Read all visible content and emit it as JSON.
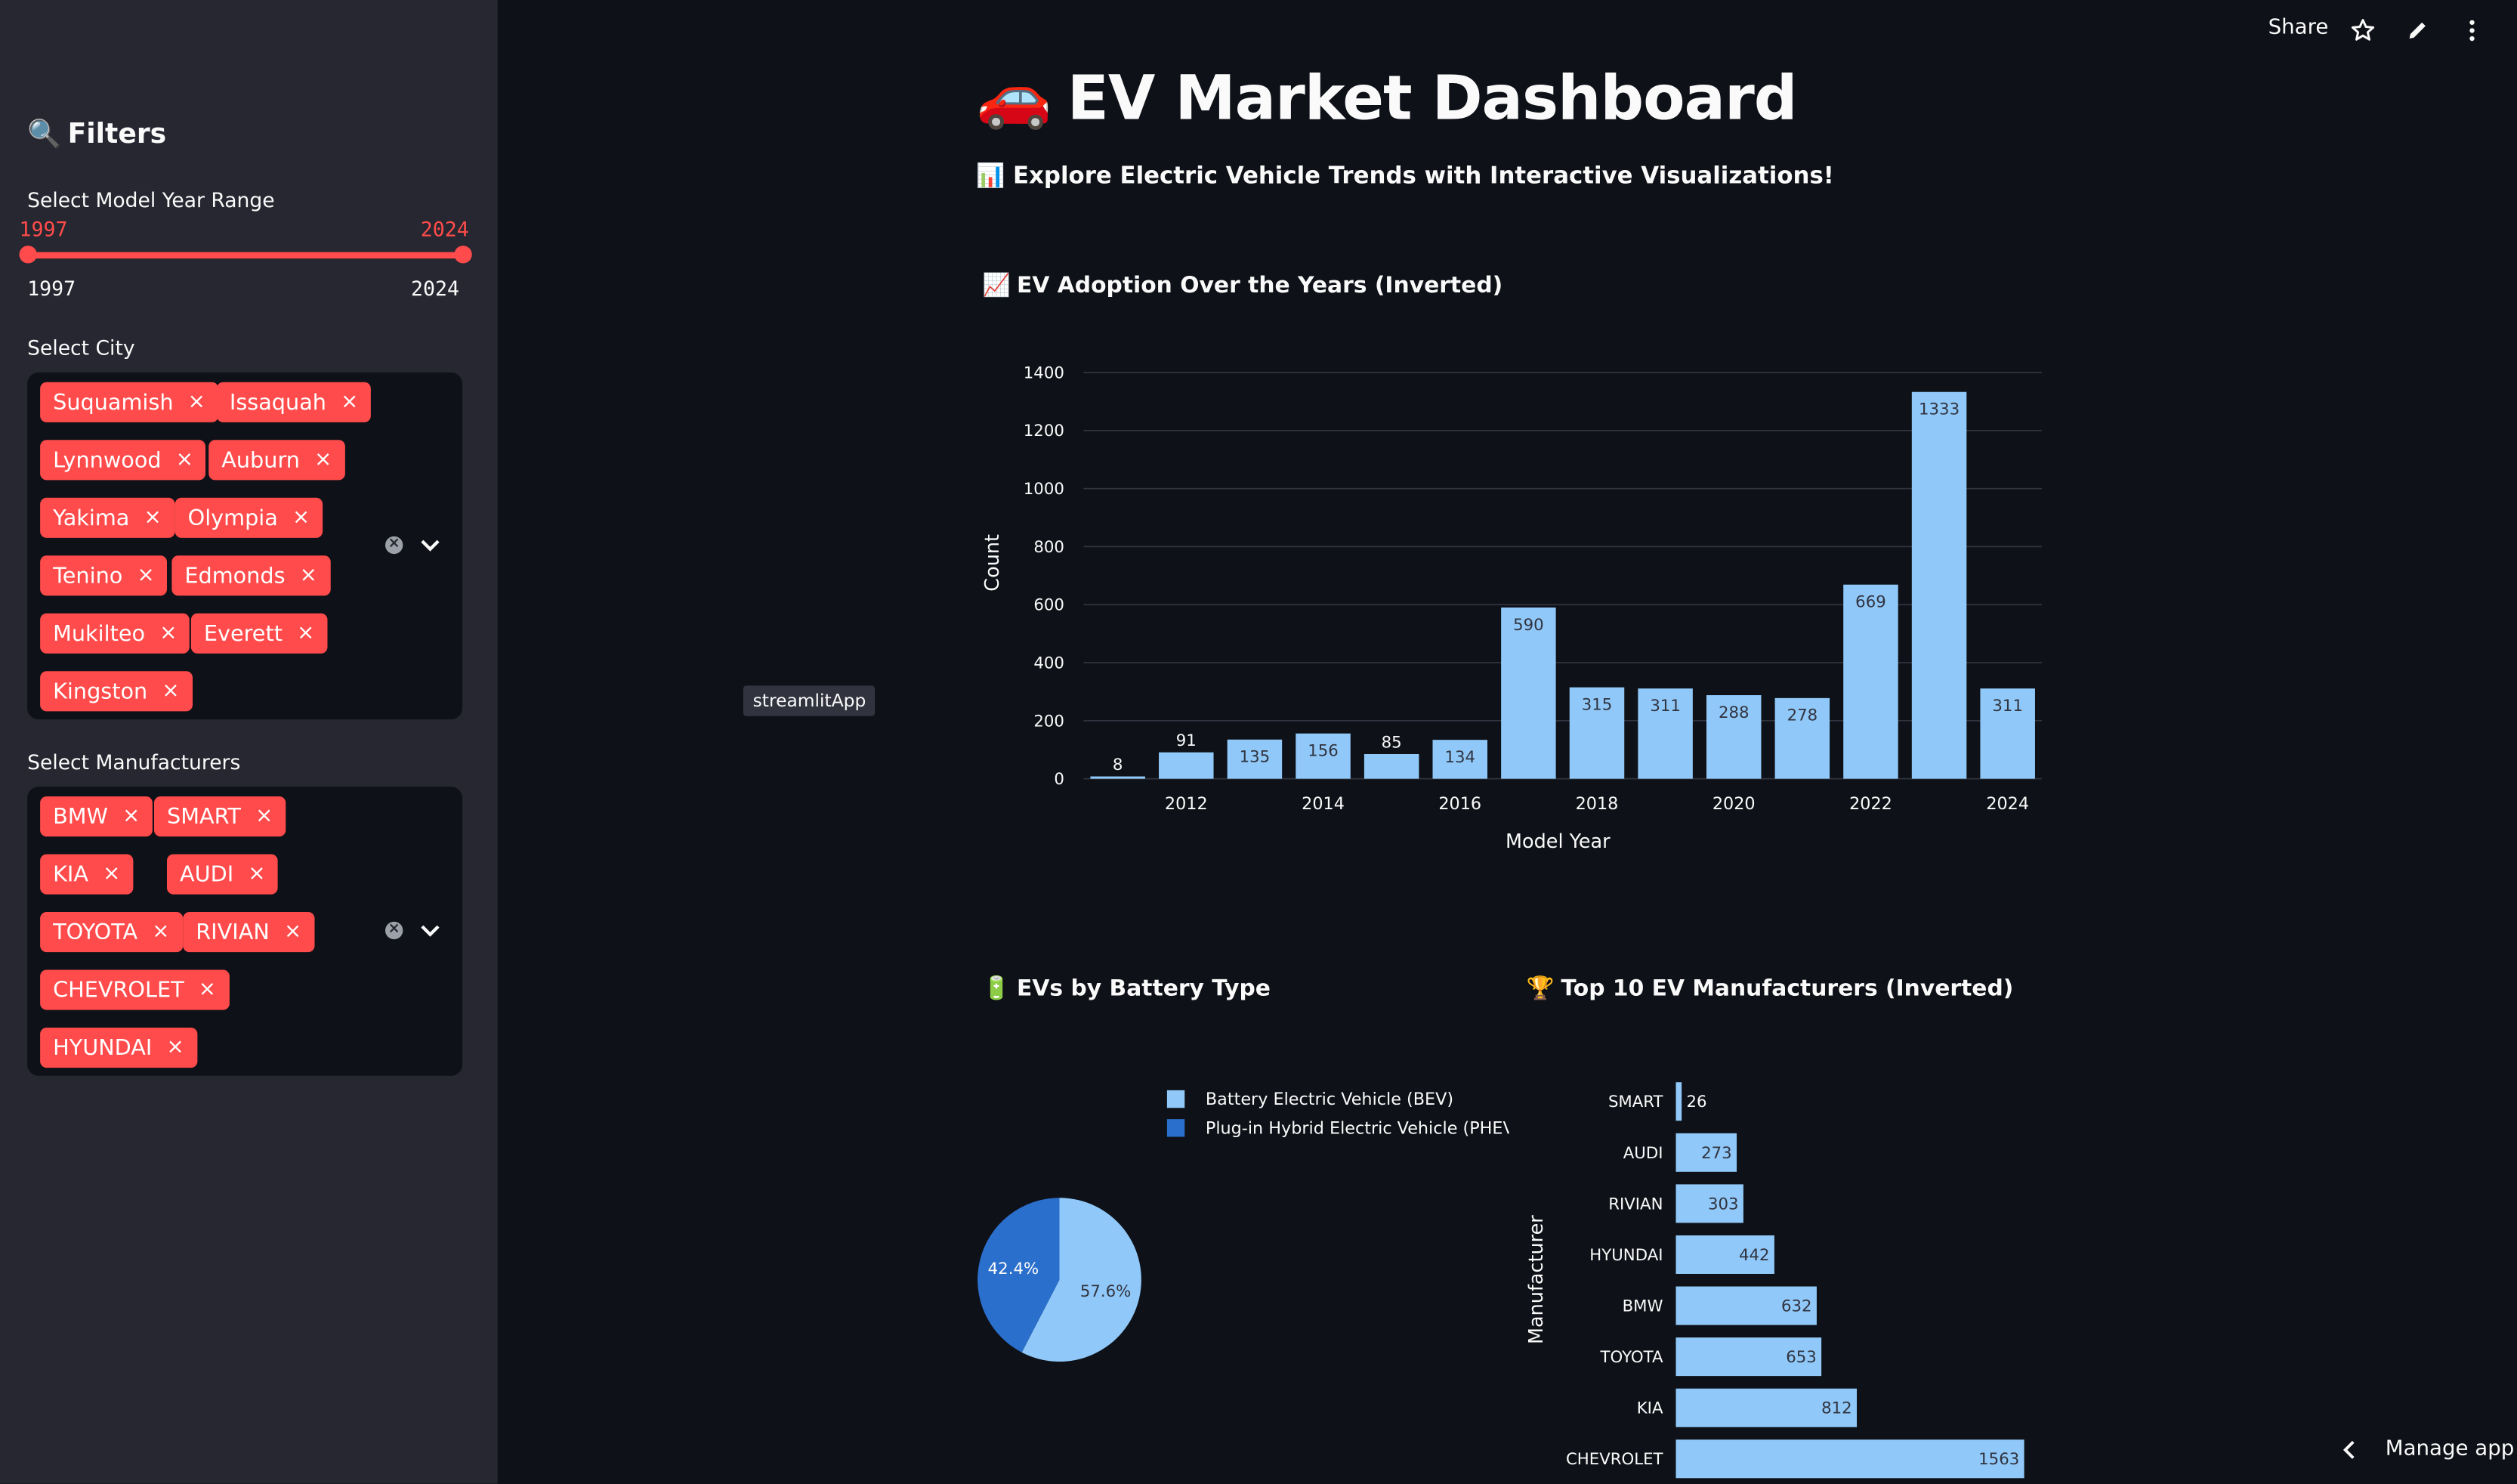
{
  "header": {
    "share_label": "Share"
  },
  "page": {
    "title_emoji": "🚗",
    "title": "EV Market Dashboard",
    "subtitle_emoji": "📊",
    "subtitle": "Explore Electric Vehicle Trends with Interactive Visualizations!"
  },
  "sidebar": {
    "title_emoji": "🔍",
    "title": "Filters",
    "year_range": {
      "label": "Select Model Year Range",
      "min": "1997",
      "max": "2024",
      "value_low": "1997",
      "value_high": "2024"
    },
    "city": {
      "label": "Select City",
      "selected": [
        "Suquamish",
        "Issaquah",
        "Lynnwood",
        "Auburn",
        "Yakima",
        "Olympia",
        "Tenino",
        "Edmonds",
        "Mukilteo",
        "Everett",
        "Kingston"
      ]
    },
    "manufacturers": {
      "label": "Select Manufacturers",
      "selected": [
        "BMW",
        "SMART",
        "KIA",
        "AUDI",
        "TOYOTA",
        "RIVIAN",
        "CHEVROLET",
        "HYUNDAI"
      ]
    },
    "remove_glyph": "×"
  },
  "tooltip": "streamlitApp",
  "footer": {
    "manage_app_label": "Manage app"
  },
  "sections": {
    "adoption_emoji": "📈",
    "adoption_title": "EV Adoption Over the Years (Inverted)",
    "battery_emoji": "🔋",
    "battery_title": "EVs by Battery Type",
    "top10_emoji": "🏆",
    "top10_title": "Top 10 EV Manufacturers (Inverted)"
  },
  "chart_data": [
    {
      "type": "bar",
      "x": [
        2011,
        2012,
        2013,
        2014,
        2015,
        2016,
        2017,
        2018,
        2019,
        2020,
        2021,
        2022,
        2023,
        2024
      ],
      "values": [
        8,
        91,
        135,
        156,
        85,
        134,
        590,
        315,
        311,
        288,
        278,
        669,
        1333,
        311
      ],
      "xlabel": "Model Year",
      "ylabel": "Count",
      "ylim": [
        0,
        1400
      ],
      "yticks": [
        0,
        200,
        400,
        600,
        800,
        1000,
        1200,
        1400
      ],
      "xticks": [
        2012,
        2014,
        2016,
        2018,
        2020,
        2022,
        2024
      ],
      "color": "#90c9f9",
      "grid": true
    },
    {
      "type": "pie",
      "labels": [
        "Battery Electric Vehicle (BEV)",
        "Plug-in Hybrid Electric Vehicle (PHEV)"
      ],
      "values": [
        57.6,
        42.4
      ],
      "value_labels": [
        "57.6%",
        "42.4%"
      ],
      "colors": [
        "#90c9f9",
        "#2b6fcd"
      ],
      "legend": "top-right"
    },
    {
      "type": "bar",
      "orientation": "horizontal",
      "categories": [
        "SMART",
        "AUDI",
        "RIVIAN",
        "HYUNDAI",
        "BMW",
        "TOYOTA",
        "KIA",
        "CHEVROLET"
      ],
      "values": [
        26,
        273,
        303,
        442,
        632,
        653,
        812,
        1563
      ],
      "ylabel": "Manufacturer",
      "color": "#90c9f9"
    }
  ]
}
